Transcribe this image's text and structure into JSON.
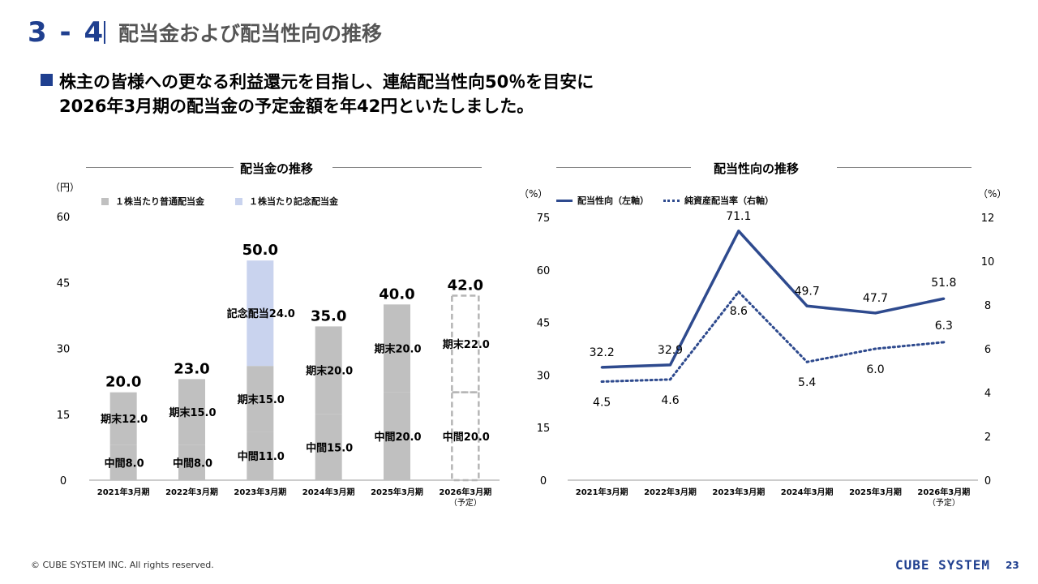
{
  "header": {
    "section_no": "3 - 4",
    "title": "配当金および配当性向の推移"
  },
  "headline": {
    "line1": "株主の皆様への更なる利益還元を目指し、連結配当性向50％を目安に",
    "line2": "2026年3月期の配当金の予定金額を年42円といたしました。"
  },
  "colors": {
    "accent": "#1f3f8f",
    "bar_regular": "#c0c0c0",
    "bar_commemorative": "#c9d3ee",
    "line_series": "#2e4a8e"
  },
  "chart_data": [
    {
      "type": "bar",
      "stacked": true,
      "title": "配当金の推移",
      "unit_label": "（円）",
      "categories": [
        "2021年3月期",
        "2022年3月期",
        "2023年3月期",
        "2024年3月期",
        "2025年3月期",
        "2026年3月期"
      ],
      "category_notes": [
        "",
        "",
        "",
        "",
        "",
        "（予定）"
      ],
      "yticks": [
        "0",
        "15",
        "30",
        "45",
        "60"
      ],
      "ylim": [
        0,
        60
      ],
      "legend": [
        "１株当たり普通配当金",
        "１株当たり記念配当金"
      ],
      "series": [
        {
          "name": "中間",
          "values": [
            8.0,
            8.0,
            11.0,
            15.0,
            20.0,
            20.0
          ],
          "labels": [
            "中間8.0",
            "中間8.0",
            "中間11.0",
            "中間15.0",
            "中間20.0",
            "中間20.0"
          ]
        },
        {
          "name": "期末",
          "values": [
            12.0,
            15.0,
            15.0,
            20.0,
            20.0,
            22.0
          ],
          "labels": [
            "期末12.0",
            "期末15.0",
            "期末15.0",
            "期末20.0",
            "期末20.0",
            "期末22.0"
          ]
        },
        {
          "name": "記念配当",
          "values": [
            0,
            0,
            24.0,
            0,
            0,
            0
          ],
          "labels": [
            "",
            "",
            "記念配当24.0",
            "",
            "",
            ""
          ]
        }
      ],
      "totals": [
        "20.0",
        "23.0",
        "50.0",
        "35.0",
        "40.0",
        "42.0"
      ],
      "forecast_index": 5
    },
    {
      "type": "line",
      "title": "配当性向の推移",
      "left_unit": "（%）",
      "right_unit": "（%）",
      "categories": [
        "2021年3月期",
        "2022年3月期",
        "2023年3月期",
        "2024年3月期",
        "2025年3月期",
        "2026年3月期"
      ],
      "category_notes": [
        "",
        "",
        "",
        "",
        "",
        "（予定）"
      ],
      "left_yticks": [
        "0",
        "15",
        "30",
        "45",
        "60",
        "75"
      ],
      "left_ylim": [
        0,
        75
      ],
      "right_yticks": [
        "0",
        "2",
        "4",
        "6",
        "8",
        "10",
        "12"
      ],
      "right_ylim": [
        0,
        12
      ],
      "series": [
        {
          "name": "配当性向（左軸）",
          "axis": "left",
          "style": "solid",
          "values": [
            32.2,
            32.9,
            71.1,
            49.7,
            47.7,
            51.8
          ],
          "labels": [
            "32.2",
            "32.9",
            "71.1",
            "49.7",
            "47.7",
            "51.8"
          ]
        },
        {
          "name": "純資産配当率（右軸）",
          "axis": "right",
          "style": "dotted",
          "values": [
            4.5,
            4.6,
            8.6,
            5.4,
            6.0,
            6.3
          ],
          "labels": [
            "4.5",
            "4.6",
            "8.6",
            "5.4",
            "6.0",
            "6.3"
          ]
        }
      ]
    }
  ],
  "footer": {
    "copyright": "© CUBE SYSTEM INC. All rights reserved.",
    "logo": "CUBE SYSTEM",
    "page": "23"
  }
}
